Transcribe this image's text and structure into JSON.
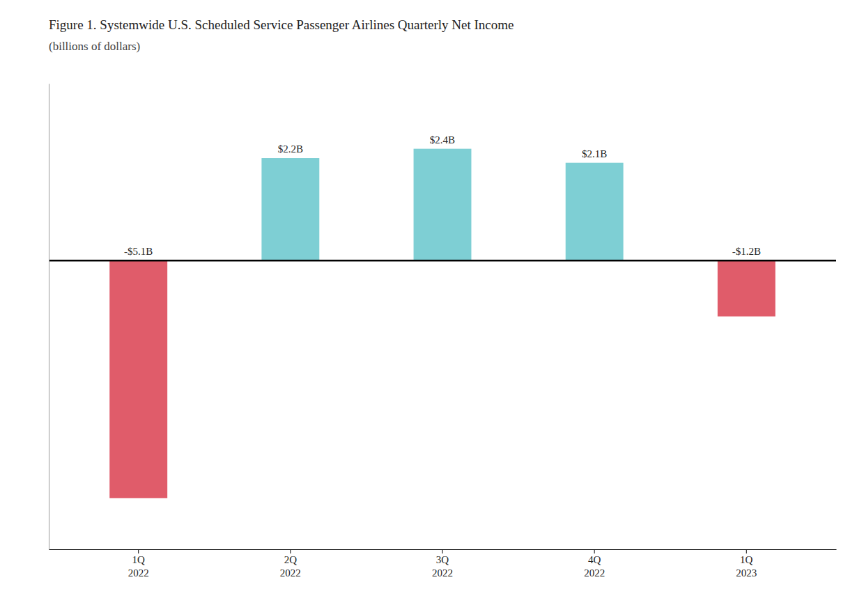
{
  "chart_data": {
    "type": "bar",
    "title": "Figure 1. Systemwide U.S. Scheduled Service Passenger Airlines Quarterly Net Income",
    "subtitle": "(billions of dollars)",
    "categories": [
      "1Q\n2022",
      "2Q\n2022",
      "3Q\n2022",
      "4Q\n2022",
      "1Q\n2023"
    ],
    "values": [
      -5.1,
      2.2,
      2.4,
      2.1,
      -1.2
    ],
    "value_labels": [
      "-$5.1B",
      "$2.2B",
      "$2.4B",
      "$2.1B",
      "-$1.2B"
    ],
    "colors": [
      "#e05c6a",
      "#7ecfd4",
      "#7ecfd4",
      "#7ecfd4",
      "#e05c6a"
    ],
    "ylim": [
      -6.2,
      3.8
    ],
    "data_labels": true,
    "tick_labels": "x",
    "grid": false
  }
}
